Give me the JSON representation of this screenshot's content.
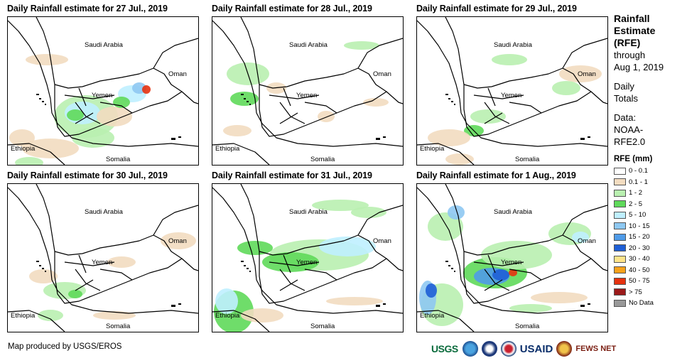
{
  "panels": [
    {
      "title": "Daily Rainfall estimate for 27 Jul., 2019",
      "intensity": 1.0
    },
    {
      "title": "Daily Rainfall estimate for 28 Jul., 2019",
      "intensity": 0.35
    },
    {
      "title": "Daily Rainfall estimate for 29 Jul., 2019",
      "intensity": 0.45
    },
    {
      "title": "Daily Rainfall estimate for 30 Jul., 2019",
      "intensity": 0.55
    },
    {
      "title": "Daily Rainfall estimate for 31 Jul., 2019",
      "intensity": 0.8
    },
    {
      "title": "Daily Rainfall estimate for 1 Aug., 2019",
      "intensity": 1.0
    }
  ],
  "map_labels": {
    "saudi_arabia": "Saudi Arabia",
    "oman": "Oman",
    "yemen": "Yemen",
    "ethiopia": "Ethiopia",
    "somalia": "Somalia"
  },
  "legend": {
    "title_line1": "Rainfall",
    "title_line2": "Estimate",
    "title_line3": "(RFE)",
    "through": "through",
    "date": "Aug 1, 2019",
    "daily": "Daily",
    "totals": "Totals",
    "data_label": "Data:",
    "noaa": "NOAA-",
    "rfe_version": "RFE2.0",
    "rfe_heading": "RFE (mm)",
    "classes": [
      {
        "label": "0 - 0.1",
        "color": "#ffffff"
      },
      {
        "label": "0.1 - 1",
        "color": "#f2dcc0"
      },
      {
        "label": "1 - 2",
        "color": "#b9f0b0"
      },
      {
        "label": "2 - 5",
        "color": "#5fd95a"
      },
      {
        "label": "5 - 10",
        "color": "#bfefff"
      },
      {
        "label": "10 - 15",
        "color": "#8ec8f2"
      },
      {
        "label": "15 - 20",
        "color": "#4f9be8"
      },
      {
        "label": "20 - 30",
        "color": "#1f5fd6"
      },
      {
        "label": "30 - 40",
        "color": "#ffe48a"
      },
      {
        "label": "40 - 50",
        "color": "#f7a21b"
      },
      {
        "label": "50 - 75",
        "color": "#e6320f"
      },
      {
        "label": "> 75",
        "color": "#9b1a1a"
      },
      {
        "label": "No Data",
        "color": "#999999"
      }
    ]
  },
  "footer": {
    "credit": "Map produced by USGS/EROS"
  },
  "logos": {
    "usgs": "USGS",
    "usaid": "USAID",
    "fews": "FEWS NET"
  }
}
